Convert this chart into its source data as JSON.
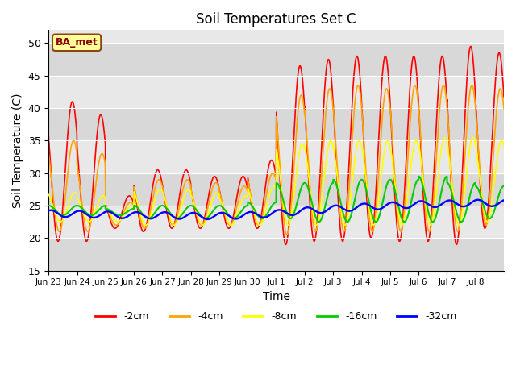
{
  "title": "Soil Temperatures Set C",
  "xlabel": "Time",
  "ylabel": "Soil Temperature (C)",
  "ylim": [
    15,
    52
  ],
  "yticks": [
    15,
    20,
    25,
    30,
    35,
    40,
    45,
    50
  ],
  "background_color": "#ffffff",
  "plot_bg_color": "#e8e8e8",
  "annotation_label": "BA_met",
  "annotation_bg": "#ffff99",
  "annotation_border": "#8b4513",
  "annotation_text_color": "#8b0000",
  "colors": {
    "-2cm": "#ff0000",
    "-4cm": "#ffa500",
    "-8cm": "#ffff00",
    "-16cm": "#00cc00",
    "-32cm": "#0000ff"
  },
  "legend_labels": [
    "-2cm",
    "-4cm",
    "-8cm",
    "-16cm",
    "-32cm"
  ],
  "xtick_labels": [
    "Jun 23",
    "Jun 24",
    "Jun 25",
    "Jun 26",
    "Jun 27",
    "Jun 28",
    "Jun 29",
    "Jun 30",
    "Jul 1",
    "Jul 2",
    "Jul 3",
    "Jul 4",
    "Jul 5",
    "Jul 6",
    "Jul 7",
    "Jul 8"
  ],
  "n_days": 16,
  "band_colors": [
    "#d8d8d8",
    "#e8e8e8"
  ],
  "day_peaks_2cm": [
    41.0,
    39.0,
    26.5,
    30.5,
    30.5,
    29.5,
    29.5,
    32.0,
    46.5,
    47.5,
    48.0,
    48.0,
    48.0,
    48.0,
    49.5,
    48.5
  ],
  "day_troughs_2cm": [
    19.5,
    19.5,
    21.5,
    21.0,
    21.5,
    21.5,
    21.5,
    21.5,
    19.0,
    19.5,
    19.5,
    20.0,
    19.5,
    19.5,
    19.0,
    21.5
  ],
  "day_peaks_4cm": [
    35.0,
    33.0,
    25.5,
    29.0,
    29.0,
    28.5,
    28.0,
    30.0,
    42.0,
    43.0,
    43.5,
    43.0,
    43.5,
    43.5,
    43.5,
    43.0
  ],
  "day_troughs_4cm": [
    21.0,
    21.0,
    22.0,
    21.5,
    22.0,
    22.0,
    22.0,
    22.0,
    20.5,
    21.0,
    21.0,
    21.0,
    21.0,
    21.0,
    21.0,
    22.0
  ],
  "day_peaks_8cm": [
    27.0,
    26.5,
    25.0,
    27.5,
    27.5,
    27.0,
    26.5,
    28.0,
    34.5,
    35.0,
    35.0,
    35.0,
    35.0,
    35.5,
    35.5,
    35.0
  ],
  "day_troughs_8cm": [
    22.5,
    22.5,
    22.5,
    22.0,
    22.0,
    22.0,
    22.0,
    22.0,
    22.0,
    22.0,
    22.0,
    22.0,
    22.0,
    22.0,
    22.0,
    22.5
  ],
  "day_peaks_16cm": [
    25.0,
    25.0,
    24.5,
    25.0,
    25.0,
    25.0,
    25.0,
    25.5,
    28.5,
    28.5,
    29.0,
    29.0,
    29.0,
    29.5,
    28.5,
    28.0
  ],
  "day_troughs_16cm": [
    23.5,
    23.5,
    23.5,
    23.0,
    23.0,
    23.0,
    23.0,
    23.0,
    23.0,
    22.5,
    22.5,
    22.5,
    22.5,
    22.5,
    22.5,
    23.0
  ],
  "base_32cm": [
    23.8,
    23.7,
    23.6,
    23.5,
    23.5,
    23.4,
    23.4,
    23.5,
    23.8,
    24.2,
    24.5,
    24.8,
    25.0,
    25.2,
    25.3,
    25.4
  ]
}
